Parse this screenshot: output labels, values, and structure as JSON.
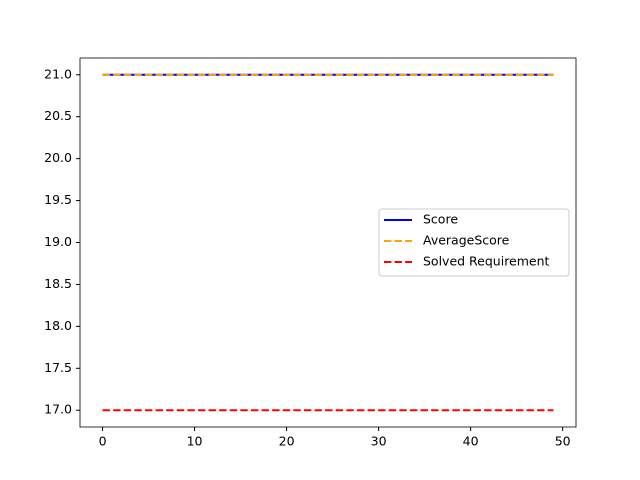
{
  "chart_data": {
    "type": "line",
    "x": [
      0,
      1,
      2,
      3,
      4,
      5,
      6,
      7,
      8,
      9,
      10,
      11,
      12,
      13,
      14,
      15,
      16,
      17,
      18,
      19,
      20,
      21,
      22,
      23,
      24,
      25,
      26,
      27,
      28,
      29,
      30,
      31,
      32,
      33,
      34,
      35,
      36,
      37,
      38,
      39,
      40,
      41,
      42,
      43,
      44,
      45,
      46,
      47,
      48,
      49
    ],
    "series": [
      {
        "name": "Score",
        "color": "#0000ff",
        "linestyle": "solid",
        "values": [
          21,
          21,
          21,
          21,
          21,
          21,
          21,
          21,
          21,
          21,
          21,
          21,
          21,
          21,
          21,
          21,
          21,
          21,
          21,
          21,
          21,
          21,
          21,
          21,
          21,
          21,
          21,
          21,
          21,
          21,
          21,
          21,
          21,
          21,
          21,
          21,
          21,
          21,
          21,
          21,
          21,
          21,
          21,
          21,
          21,
          21,
          21,
          21,
          21,
          21
        ]
      },
      {
        "name": "AverageScore",
        "color": "#ffa500",
        "linestyle": "dashed",
        "values": [
          21,
          21,
          21,
          21,
          21,
          21,
          21,
          21,
          21,
          21,
          21,
          21,
          21,
          21,
          21,
          21,
          21,
          21,
          21,
          21,
          21,
          21,
          21,
          21,
          21,
          21,
          21,
          21,
          21,
          21,
          21,
          21,
          21,
          21,
          21,
          21,
          21,
          21,
          21,
          21,
          21,
          21,
          21,
          21,
          21,
          21,
          21,
          21,
          21,
          21
        ]
      },
      {
        "name": "Solved Requirement",
        "color": "#ff0000",
        "linestyle": "dashed",
        "values": [
          17,
          17,
          17,
          17,
          17,
          17,
          17,
          17,
          17,
          17,
          17,
          17,
          17,
          17,
          17,
          17,
          17,
          17,
          17,
          17,
          17,
          17,
          17,
          17,
          17,
          17,
          17,
          17,
          17,
          17,
          17,
          17,
          17,
          17,
          17,
          17,
          17,
          17,
          17,
          17,
          17,
          17,
          17,
          17,
          17,
          17,
          17,
          17,
          17,
          17
        ]
      }
    ],
    "xlim": [
      -2.45,
      51.45
    ],
    "xticks": [
      0,
      10,
      20,
      30,
      40,
      50
    ],
    "ylim": [
      16.8,
      21.2
    ],
    "yticks": [
      {
        "value": 17,
        "label": "17.0"
      },
      {
        "value": 17.5,
        "label": "17.5"
      },
      {
        "value": 18,
        "label": "18.0"
      },
      {
        "value": 18.5,
        "label": "18.5"
      },
      {
        "value": 19,
        "label": "19.0"
      },
      {
        "value": 19.5,
        "label": "19.5"
      },
      {
        "value": 20,
        "label": "20.0"
      },
      {
        "value": 20.5,
        "label": "20.5"
      },
      {
        "value": 21,
        "label": "21.0"
      }
    ],
    "legend": "center right"
  }
}
